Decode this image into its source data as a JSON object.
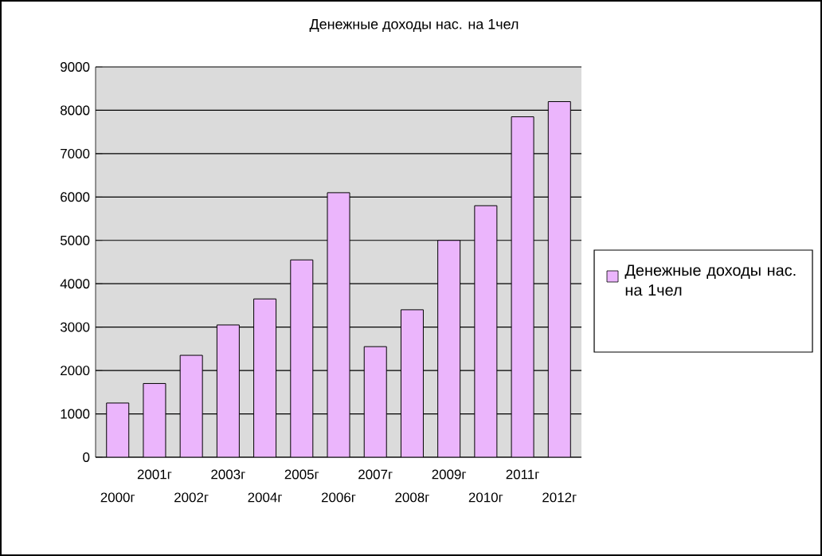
{
  "chart_data": {
    "type": "bar",
    "title": "Денежные доходы нас. на 1чел",
    "categories": [
      "2000г",
      "2001г",
      "2002г",
      "2003г",
      "2004г",
      "2005г",
      "2006г",
      "2007г",
      "2008г",
      "2009г",
      "2010г",
      "2011г",
      "2012г"
    ],
    "series": [
      {
        "name": "Денежные доходы нас. на 1чел",
        "color": "#ebb5fc",
        "values": [
          1250,
          1700,
          2350,
          3050,
          3650,
          4550,
          6100,
          2550,
          3400,
          5000,
          5800,
          7850,
          8200
        ]
      }
    ],
    "ylim": [
      0,
      9000
    ],
    "yticks": [
      0,
      1000,
      2000,
      3000,
      4000,
      5000,
      6000,
      7000,
      8000,
      9000
    ],
    "grid": "y",
    "legend": "right"
  }
}
